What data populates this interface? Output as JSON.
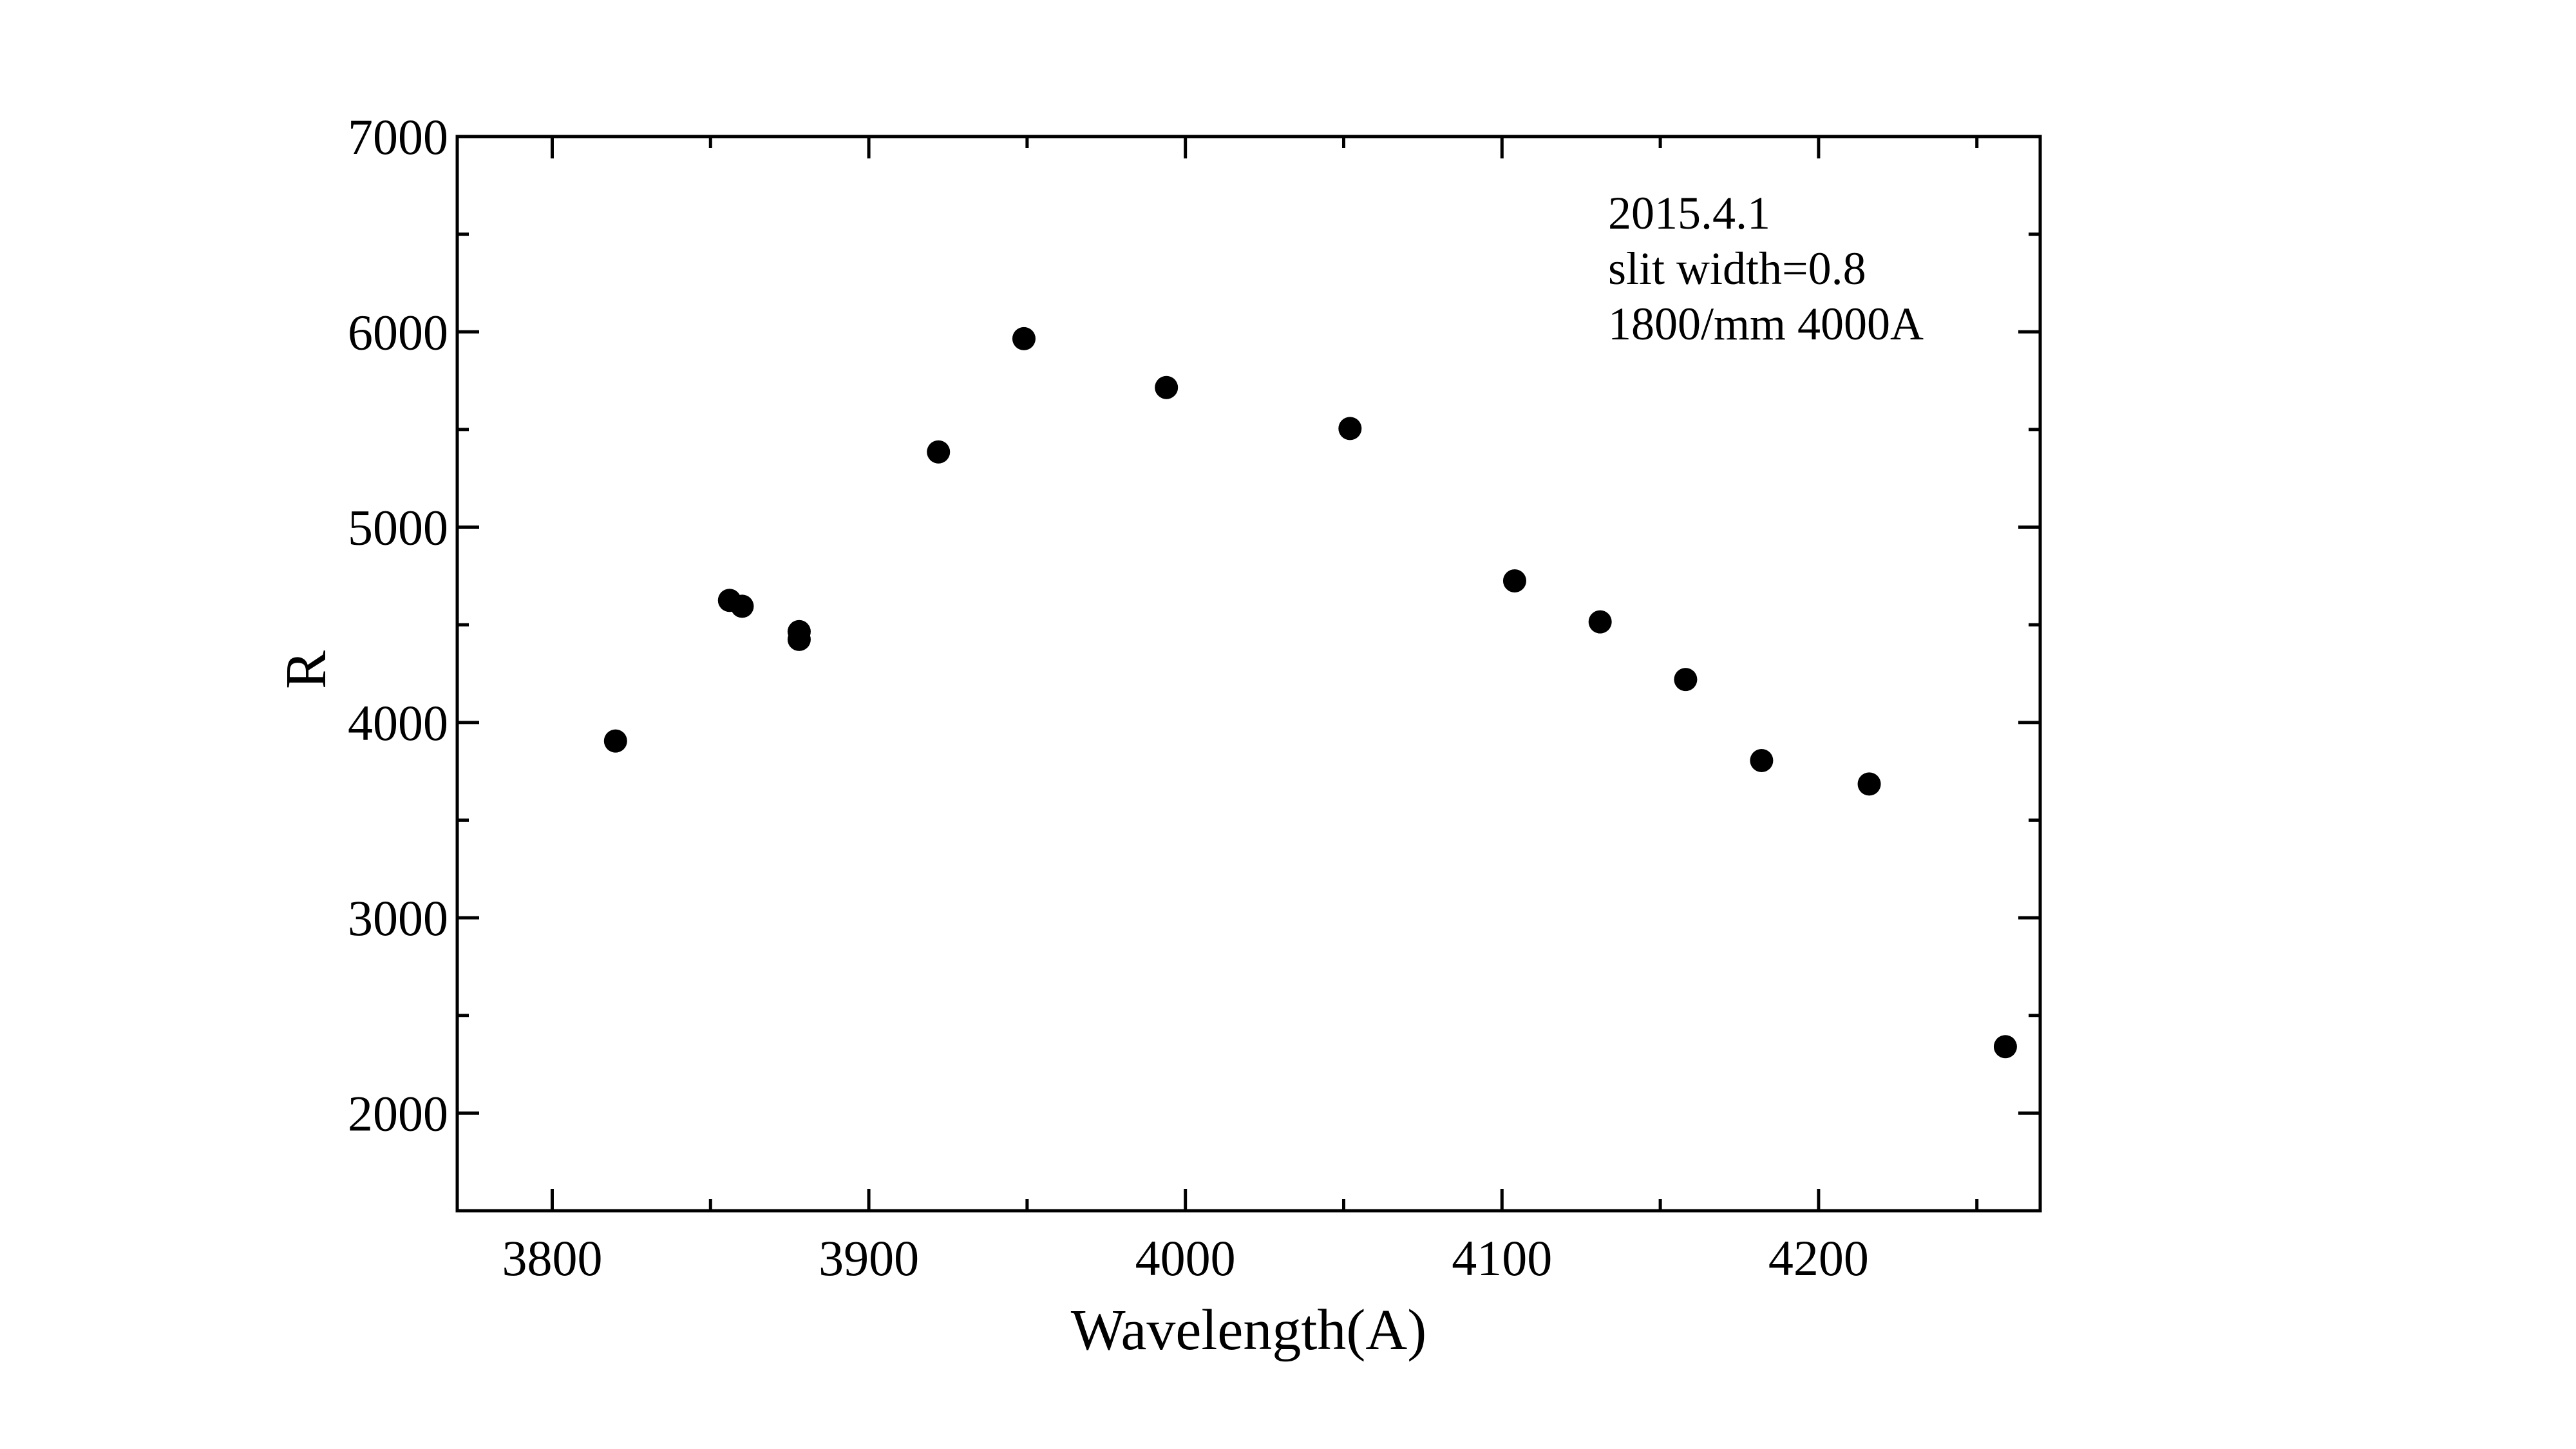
{
  "chart_data": {
    "type": "scatter",
    "title": "",
    "xlabel": "Wavelength(A)",
    "ylabel": "R",
    "xlim": [
      3770,
      4270
    ],
    "ylim": [
      1500,
      7000
    ],
    "x_ticks": [
      3800,
      3900,
      4000,
      4100,
      4200
    ],
    "x_minor_step": 50,
    "y_ticks": [
      2000,
      3000,
      4000,
      5000,
      6000,
      7000
    ],
    "y_minor_step": 500,
    "grid": false,
    "marker_color": "#000000",
    "annotation": [
      "2015.4.1",
      "slit width=0.8",
      "1800/mm 4000A"
    ],
    "points": [
      {
        "x": 3820,
        "y": 3905
      },
      {
        "x": 3856,
        "y": 4625
      },
      {
        "x": 3860,
        "y": 4595
      },
      {
        "x": 3878,
        "y": 4465
      },
      {
        "x": 3878,
        "y": 4425
      },
      {
        "x": 3922,
        "y": 5385
      },
      {
        "x": 3949,
        "y": 5965
      },
      {
        "x": 3994,
        "y": 5715
      },
      {
        "x": 4052,
        "y": 5505
      },
      {
        "x": 4104,
        "y": 4725
      },
      {
        "x": 4131,
        "y": 4515
      },
      {
        "x": 4158,
        "y": 4220
      },
      {
        "x": 4182,
        "y": 3805
      },
      {
        "x": 4216,
        "y": 3685
      },
      {
        "x": 4259,
        "y": 2340
      }
    ]
  }
}
